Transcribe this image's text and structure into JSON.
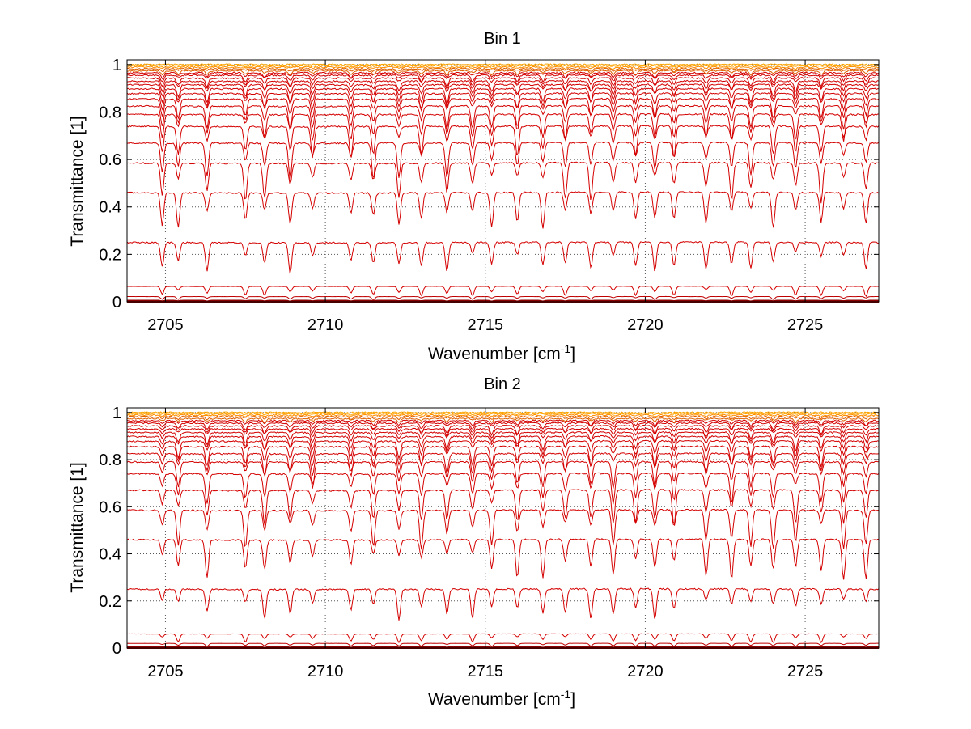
{
  "chart_data": [
    {
      "type": "line",
      "title": "Bin 1",
      "xlabel": "Wavenumber [cm",
      "xlabel_sup": "-1",
      "xlabel_end": "]",
      "ylabel": "Transmittance [1]",
      "xlim": [
        2703.8,
        2727.3
      ],
      "ylim": [
        0,
        1.02
      ],
      "xticks": [
        2705,
        2710,
        2715,
        2720,
        2725
      ],
      "xtick_labels": [
        "2705",
        "2710",
        "2715",
        "2720",
        "2725"
      ],
      "yticks": [
        0,
        0.2,
        0.4,
        0.6,
        0.8,
        1
      ],
      "ytick_labels": [
        "0",
        "0.2",
        "0.4",
        "0.6",
        "0.8",
        "1"
      ],
      "grid": true,
      "series_baselines": [
        0.0,
        0.005,
        0.022,
        0.065,
        0.25,
        0.46,
        0.585,
        0.67,
        0.74,
        0.79,
        0.825,
        0.855,
        0.878,
        0.898,
        0.915,
        0.93,
        0.943,
        0.955,
        0.965,
        0.974,
        0.982,
        0.989,
        0.995,
        1.0
      ],
      "absorption_lines": [
        2704.9,
        2705.4,
        2706.3,
        2707.5,
        2708.1,
        2708.9,
        2709.6,
        2710.8,
        2711.5,
        2712.3,
        2713.0,
        2713.8,
        2714.6,
        2715.2,
        2716.0,
        2716.8,
        2717.5,
        2718.3,
        2719.0,
        2719.7,
        2720.3,
        2720.9,
        2721.9,
        2722.7,
        2723.3,
        2724.0,
        2724.7,
        2725.5,
        2726.2,
        2726.9
      ],
      "colors": [
        "#8b0000",
        "#b00000",
        "#c00000",
        "#d40000",
        "#e06000",
        "#ff8c00",
        "#ffa500"
      ]
    },
    {
      "type": "line",
      "title": "Bin 2",
      "xlabel": "Wavenumber [cm",
      "xlabel_sup": "-1",
      "xlabel_end": "]",
      "ylabel": "Transmittance [1]",
      "xlim": [
        2703.8,
        2727.3
      ],
      "ylim": [
        0,
        1.02
      ],
      "xticks": [
        2705,
        2710,
        2715,
        2720,
        2725
      ],
      "xtick_labels": [
        "2705",
        "2710",
        "2715",
        "2720",
        "2725"
      ],
      "yticks": [
        0,
        0.2,
        0.4,
        0.6,
        0.8,
        1
      ],
      "ytick_labels": [
        "0",
        "0.2",
        "0.4",
        "0.6",
        "0.8",
        "1"
      ],
      "grid": true,
      "series_baselines": [
        0.0,
        0.005,
        0.02,
        0.06,
        0.25,
        0.46,
        0.585,
        0.67,
        0.74,
        0.79,
        0.825,
        0.855,
        0.878,
        0.898,
        0.915,
        0.93,
        0.943,
        0.955,
        0.965,
        0.974,
        0.982,
        0.989,
        0.995,
        1.0
      ],
      "absorption_lines": [
        2704.9,
        2705.4,
        2706.3,
        2707.5,
        2708.1,
        2708.9,
        2709.6,
        2710.8,
        2711.5,
        2712.3,
        2713.0,
        2713.8,
        2714.6,
        2715.2,
        2716.0,
        2716.8,
        2717.5,
        2718.3,
        2719.0,
        2719.7,
        2720.3,
        2720.9,
        2721.9,
        2722.7,
        2723.3,
        2724.0,
        2724.7,
        2725.5,
        2726.2,
        2726.9
      ],
      "colors": [
        "#8b0000",
        "#b00000",
        "#c00000",
        "#d40000",
        "#e06000",
        "#ff8c00",
        "#ffa500"
      ]
    }
  ]
}
